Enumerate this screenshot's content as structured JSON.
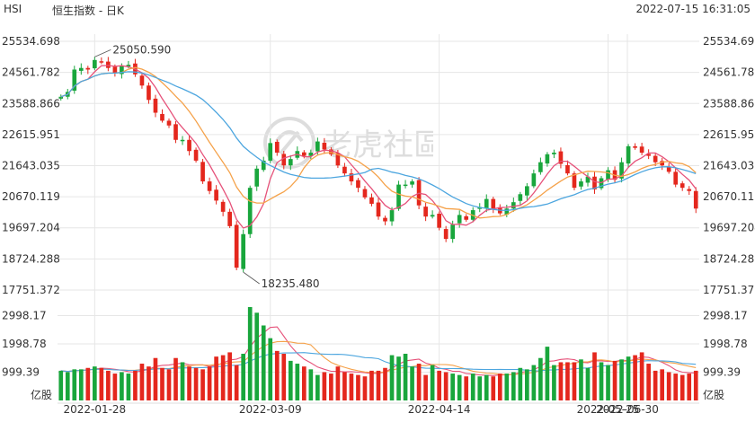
{
  "header": {
    "symbol": "HSI",
    "title": "恒生指数 - 日K",
    "timestamp": "2022-07-15 16:31:05"
  },
  "watermark": {
    "text": "老虎社區",
    "icon": "tiger-logo-icon"
  },
  "colors": {
    "up": "#19a63c",
    "down": "#e4271d",
    "ma5": "#e6527a",
    "ma10": "#f5a24a",
    "ma20": "#4da6df",
    "grid": "#e6e6e6"
  },
  "chart_data": [
    {
      "type": "candlestick",
      "title": "恒生指数 - 日K",
      "ylim": [
        17751.372,
        25534.698
      ],
      "y_ticks": [
        "25534.698",
        "24561.782",
        "23588.866",
        "22615.951",
        "21643.035",
        "20670.119",
        "19697.204",
        "18724.288",
        "17751.372"
      ],
      "x_tick_labels": [
        "2022-01-28",
        "2022-03-09",
        "2022-04-14",
        "2022-05-25",
        "2022-06-30"
      ],
      "annotations": [
        {
          "label": "25050.590",
          "kind": "max"
        },
        {
          "label": "18235.480",
          "kind": "min"
        }
      ],
      "moving_averages": [
        "MA5",
        "MA10",
        "MA20"
      ],
      "closes": [
        23800,
        23950,
        24650,
        24700,
        24650,
        24950,
        24900,
        24700,
        24550,
        24750,
        24800,
        24500,
        24150,
        23700,
        23300,
        23050,
        22900,
        22450,
        22450,
        22100,
        21800,
        21150,
        20850,
        20550,
        20200,
        19750,
        18450,
        19500,
        20950,
        21550,
        21800,
        22350,
        22050,
        21650,
        21850,
        22100,
        21950,
        22050,
        22400,
        22150,
        22000,
        21650,
        21400,
        21150,
        20950,
        20650,
        20450,
        20050,
        19900,
        20250,
        21050,
        21050,
        21150,
        20400,
        20050,
        20100,
        19700,
        19350,
        19800,
        20100,
        19950,
        20250,
        20350,
        20600,
        20300,
        20150,
        20300,
        20500,
        20750,
        21000,
        21400,
        21750,
        22000,
        22050,
        21700,
        21400,
        20950,
        21150,
        21300,
        20900,
        21250,
        21500,
        21200,
        21750,
        22250,
        22200,
        22050,
        21950,
        21750,
        21650,
        21450,
        21050,
        20950,
        20850,
        20300
      ]
    },
    {
      "type": "bar",
      "title": "",
      "ylabel": "亿股",
      "ylim": [
        0,
        3300
      ],
      "y_ticks": [
        "2998.17",
        "1998.78",
        "999.39"
      ],
      "volumes": [
        1050,
        1000,
        1100,
        1100,
        1150,
        1200,
        1150,
        1050,
        950,
        1000,
        950,
        1050,
        1300,
        1200,
        1500,
        1150,
        1100,
        1500,
        1350,
        1200,
        1150,
        1100,
        1200,
        1550,
        1600,
        1700,
        1250,
        1650,
        3300,
        3100,
        2650,
        2200,
        1750,
        1650,
        1400,
        1300,
        1200,
        1100,
        900,
        1000,
        950,
        1200,
        1000,
        950,
        900,
        850,
        1050,
        1050,
        1150,
        1600,
        1550,
        1650,
        1200,
        1300,
        900,
        1250,
        1050,
        1000,
        950,
        900,
        850,
        950,
        850,
        900,
        850,
        950,
        950,
        1000,
        1150,
        1100,
        1250,
        1500,
        1900,
        1250,
        1350,
        1350,
        1350,
        1450,
        1150,
        1700,
        1350,
        1250,
        1400,
        1450,
        1550,
        1600,
        1700,
        1300,
        1050,
        1100,
        1000,
        950,
        900,
        950,
        1050
      ]
    }
  ]
}
